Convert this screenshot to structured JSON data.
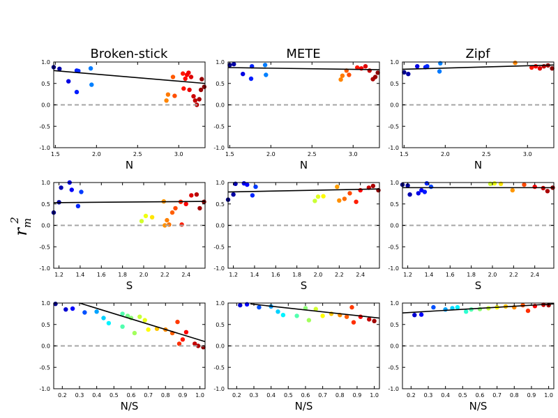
{
  "figure": {
    "ylabel": "r²m",
    "ylabel_main": "r",
    "ylabel_sup": "2",
    "ylabel_sub": "m",
    "column_titles": [
      "Broken-stick",
      "METE",
      "Zipf"
    ],
    "row_xlabels": [
      "N",
      "S",
      "N/S"
    ]
  },
  "chart_data": [
    {
      "type": "scatter",
      "panel": "broken-stick-n",
      "title": "Broken-stick",
      "xlabel": "N",
      "ylabel": "r²m",
      "xlim": [
        1.48,
        3.32
      ],
      "ylim": [
        -1.0,
        1.0
      ],
      "xticks": [
        "1.5",
        "2.0",
        "2.5",
        "3.0"
      ],
      "yticks": [
        "-1.0",
        "-0.5",
        "0.0",
        "0.5",
        "1.0"
      ],
      "fit_line": {
        "x": [
          1.48,
          3.32
        ],
        "y": [
          0.8,
          0.5
        ]
      },
      "reference_line_y": 0.0,
      "points": [
        {
          "x": 1.48,
          "y": 0.88
        },
        {
          "x": 1.55,
          "y": 0.84
        },
        {
          "x": 1.66,
          "y": 0.55
        },
        {
          "x": 1.76,
          "y": 0.3
        },
        {
          "x": 1.76,
          "y": 0.8
        },
        {
          "x": 1.78,
          "y": 0.79
        },
        {
          "x": 1.93,
          "y": 0.85
        },
        {
          "x": 1.94,
          "y": 0.47
        },
        {
          "x": 2.85,
          "y": 0.1
        },
        {
          "x": 2.87,
          "y": 0.24
        },
        {
          "x": 2.95,
          "y": 0.21
        },
        {
          "x": 2.93,
          "y": 0.65
        },
        {
          "x": 3.05,
          "y": 0.73
        },
        {
          "x": 3.1,
          "y": 0.7
        },
        {
          "x": 3.08,
          "y": 0.61
        },
        {
          "x": 3.12,
          "y": 0.75
        },
        {
          "x": 3.15,
          "y": 0.65
        },
        {
          "x": 3.06,
          "y": 0.38
        },
        {
          "x": 3.13,
          "y": 0.35
        },
        {
          "x": 3.18,
          "y": 0.2
        },
        {
          "x": 3.2,
          "y": 0.1
        },
        {
          "x": 3.22,
          "y": 0.0
        },
        {
          "x": 3.25,
          "y": 0.13
        },
        {
          "x": 3.27,
          "y": 0.35
        },
        {
          "x": 3.28,
          "y": 0.6
        },
        {
          "x": 3.31,
          "y": 0.42
        }
      ]
    },
    {
      "type": "scatter",
      "panel": "mete-n",
      "title": "METE",
      "xlabel": "N",
      "ylabel": "r²m",
      "xlim": [
        1.48,
        3.32
      ],
      "ylim": [
        -1.0,
        1.0
      ],
      "xticks": [
        "1.5",
        "2.0",
        "2.5",
        "3.0"
      ],
      "yticks": [
        "-1.0",
        "-0.5",
        "0.0",
        "0.5",
        "1.0"
      ],
      "fit_line": {
        "x": [
          1.48,
          3.32
        ],
        "y": [
          0.87,
          0.82
        ]
      },
      "reference_line_y": 0.0,
      "points": [
        {
          "x": 1.5,
          "y": 0.93
        },
        {
          "x": 1.55,
          "y": 0.95
        },
        {
          "x": 1.66,
          "y": 0.72
        },
        {
          "x": 1.76,
          "y": 0.61
        },
        {
          "x": 1.77,
          "y": 0.9
        },
        {
          "x": 1.93,
          "y": 0.93
        },
        {
          "x": 1.94,
          "y": 0.7
        },
        {
          "x": 2.85,
          "y": 0.59
        },
        {
          "x": 2.87,
          "y": 0.68
        },
        {
          "x": 2.92,
          "y": 0.8
        },
        {
          "x": 2.95,
          "y": 0.7
        },
        {
          "x": 3.05,
          "y": 0.87
        },
        {
          "x": 3.1,
          "y": 0.85
        },
        {
          "x": 3.15,
          "y": 0.9
        },
        {
          "x": 3.2,
          "y": 0.8
        },
        {
          "x": 3.24,
          "y": 0.6
        },
        {
          "x": 3.27,
          "y": 0.65
        },
        {
          "x": 3.3,
          "y": 0.75
        }
      ]
    },
    {
      "type": "scatter",
      "panel": "zipf-n",
      "title": "Zipf",
      "xlabel": "N",
      "ylabel": "r²m",
      "xlim": [
        1.48,
        3.32
      ],
      "ylim": [
        -1.0,
        1.0
      ],
      "xticks": [
        "1.5",
        "2.0",
        "2.5",
        "3.0"
      ],
      "yticks": [
        "-1.0",
        "-0.5",
        "0.0",
        "0.5",
        "1.0"
      ],
      "fit_line": {
        "x": [
          1.48,
          3.32
        ],
        "y": [
          0.83,
          0.93
        ]
      },
      "reference_line_y": 0.0,
      "points": [
        {
          "x": 1.5,
          "y": 0.76
        },
        {
          "x": 1.55,
          "y": 0.72
        },
        {
          "x": 1.66,
          "y": 0.9
        },
        {
          "x": 1.76,
          "y": 0.88
        },
        {
          "x": 1.78,
          "y": 0.9
        },
        {
          "x": 1.93,
          "y": 0.78
        },
        {
          "x": 1.94,
          "y": 0.97
        },
        {
          "x": 2.85,
          "y": 0.98
        },
        {
          "x": 3.05,
          "y": 0.87
        },
        {
          "x": 3.1,
          "y": 0.9
        },
        {
          "x": 3.15,
          "y": 0.85
        },
        {
          "x": 3.2,
          "y": 0.9
        },
        {
          "x": 3.25,
          "y": 0.92
        },
        {
          "x": 3.3,
          "y": 0.85
        }
      ]
    },
    {
      "type": "scatter",
      "panel": "broken-stick-s",
      "title": "",
      "xlabel": "S",
      "ylabel": "r²m",
      "xlim": [
        1.15,
        2.58
      ],
      "ylim": [
        -1.0,
        1.0
      ],
      "xticks": [
        "1.2",
        "1.4",
        "1.6",
        "1.8",
        "2.0",
        "2.2",
        "2.4"
      ],
      "yticks": [
        "-1.0",
        "-0.5",
        "0.0",
        "0.5",
        "1.0"
      ],
      "fit_line": {
        "x": [
          1.15,
          2.58
        ],
        "y": [
          0.53,
          0.56
        ]
      },
      "reference_line_y": 0.0,
      "points": [
        {
          "x": 1.15,
          "y": 0.3
        },
        {
          "x": 1.2,
          "y": 0.54
        },
        {
          "x": 1.22,
          "y": 0.88
        },
        {
          "x": 1.3,
          "y": 1.0
        },
        {
          "x": 1.32,
          "y": 0.83
        },
        {
          "x": 1.38,
          "y": 0.45
        },
        {
          "x": 1.41,
          "y": 0.78
        },
        {
          "x": 1.98,
          "y": 0.1
        },
        {
          "x": 2.02,
          "y": 0.22
        },
        {
          "x": 2.08,
          "y": 0.19
        },
        {
          "x": 2.19,
          "y": 0.56
        },
        {
          "x": 2.2,
          "y": 0.0
        },
        {
          "x": 2.22,
          "y": 0.12
        },
        {
          "x": 2.24,
          "y": 0.02
        },
        {
          "x": 2.27,
          "y": 0.3
        },
        {
          "x": 2.3,
          "y": 0.4
        },
        {
          "x": 2.35,
          "y": 0.55
        },
        {
          "x": 2.36,
          "y": 0.02
        },
        {
          "x": 2.4,
          "y": 0.5
        },
        {
          "x": 2.45,
          "y": 0.7
        },
        {
          "x": 2.5,
          "y": 0.72
        },
        {
          "x": 2.53,
          "y": 0.4
        },
        {
          "x": 2.57,
          "y": 0.55
        }
      ]
    },
    {
      "type": "scatter",
      "panel": "mete-s",
      "title": "",
      "xlabel": "S",
      "ylabel": "r²m",
      "xlim": [
        1.15,
        2.58
      ],
      "ylim": [
        -1.0,
        1.0
      ],
      "xticks": [
        "1.2",
        "1.4",
        "1.6",
        "1.8",
        "2.0",
        "2.2",
        "2.4"
      ],
      "yticks": [
        "-1.0",
        "-0.5",
        "0.0",
        "0.5",
        "1.0"
      ],
      "fit_line": {
        "x": [
          1.15,
          2.58
        ],
        "y": [
          0.78,
          0.85
        ]
      },
      "reference_line_y": 0.0,
      "points": [
        {
          "x": 1.15,
          "y": 0.6
        },
        {
          "x": 1.2,
          "y": 0.72
        },
        {
          "x": 1.22,
          "y": 0.97
        },
        {
          "x": 1.3,
          "y": 0.98
        },
        {
          "x": 1.33,
          "y": 0.95
        },
        {
          "x": 1.38,
          "y": 0.7
        },
        {
          "x": 1.41,
          "y": 0.9
        },
        {
          "x": 1.97,
          "y": 0.57
        },
        {
          "x": 2.0,
          "y": 0.67
        },
        {
          "x": 2.05,
          "y": 0.68
        },
        {
          "x": 2.18,
          "y": 0.9
        },
        {
          "x": 2.2,
          "y": 0.58
        },
        {
          "x": 2.25,
          "y": 0.62
        },
        {
          "x": 2.3,
          "y": 0.75
        },
        {
          "x": 2.36,
          "y": 0.55
        },
        {
          "x": 2.4,
          "y": 0.82
        },
        {
          "x": 2.48,
          "y": 0.88
        },
        {
          "x": 2.52,
          "y": 0.92
        },
        {
          "x": 2.57,
          "y": 0.82
        }
      ]
    },
    {
      "type": "scatter",
      "panel": "zipf-s",
      "title": "",
      "xlabel": "S",
      "ylabel": "r²m",
      "xlim": [
        1.15,
        2.58
      ],
      "ylim": [
        -1.0,
        1.0
      ],
      "xticks": [
        "1.2",
        "1.4",
        "1.6",
        "1.8",
        "2.0",
        "2.2",
        "2.4"
      ],
      "yticks": [
        "-1.0",
        "-0.5",
        "0.0",
        "0.5",
        "1.0"
      ],
      "fit_line": {
        "x": [
          1.15,
          2.58
        ],
        "y": [
          0.88,
          0.88
        ]
      },
      "reference_line_y": 0.0,
      "points": [
        {
          "x": 1.15,
          "y": 0.95
        },
        {
          "x": 1.2,
          "y": 0.93
        },
        {
          "x": 1.22,
          "y": 0.72
        },
        {
          "x": 1.3,
          "y": 0.75
        },
        {
          "x": 1.33,
          "y": 0.82
        },
        {
          "x": 1.36,
          "y": 0.78
        },
        {
          "x": 1.38,
          "y": 0.98
        },
        {
          "x": 1.42,
          "y": 0.9
        },
        {
          "x": 1.98,
          "y": 0.97
        },
        {
          "x": 2.02,
          "y": 0.98
        },
        {
          "x": 2.08,
          "y": 0.97
        },
        {
          "x": 2.19,
          "y": 0.82
        },
        {
          "x": 2.3,
          "y": 0.95
        },
        {
          "x": 2.4,
          "y": 0.9
        },
        {
          "x": 2.48,
          "y": 0.87
        },
        {
          "x": 2.52,
          "y": 0.8
        },
        {
          "x": 2.57,
          "y": 0.88
        }
      ]
    },
    {
      "type": "scatter",
      "panel": "broken-stick-ns",
      "title": "",
      "xlabel": "N/S",
      "ylabel": "r²m",
      "xlim": [
        0.15,
        1.03
      ],
      "ylim": [
        -1.0,
        1.0
      ],
      "xticks": [
        "0.2",
        "0.3",
        "0.4",
        "0.5",
        "0.6",
        "0.7",
        "0.8",
        "0.9",
        "1.0"
      ],
      "yticks": [
        "-1.0",
        "-0.5",
        "0.0",
        "0.5",
        "1.0"
      ],
      "fit_line": {
        "x": [
          0.3,
          1.03
        ],
        "y": [
          1.0,
          0.1
        ]
      },
      "reference_line_y": 0.0,
      "points": [
        {
          "x": 0.16,
          "y": 0.98
        },
        {
          "x": 0.22,
          "y": 0.85
        },
        {
          "x": 0.26,
          "y": 0.87
        },
        {
          "x": 0.33,
          "y": 0.78
        },
        {
          "x": 0.4,
          "y": 0.8
        },
        {
          "x": 0.44,
          "y": 0.65
        },
        {
          "x": 0.47,
          "y": 0.53
        },
        {
          "x": 0.55,
          "y": 0.45
        },
        {
          "x": 0.55,
          "y": 0.75
        },
        {
          "x": 0.58,
          "y": 0.7
        },
        {
          "x": 0.6,
          "y": 0.65
        },
        {
          "x": 0.62,
          "y": 0.3
        },
        {
          "x": 0.65,
          "y": 0.68
        },
        {
          "x": 0.68,
          "y": 0.6
        },
        {
          "x": 0.7,
          "y": 0.38
        },
        {
          "x": 0.75,
          "y": 0.4
        },
        {
          "x": 0.8,
          "y": 0.38
        },
        {
          "x": 0.84,
          "y": 0.3
        },
        {
          "x": 0.87,
          "y": 0.56
        },
        {
          "x": 0.88,
          "y": 0.05
        },
        {
          "x": 0.9,
          "y": 0.15
        },
        {
          "x": 0.92,
          "y": 0.32
        },
        {
          "x": 0.97,
          "y": 0.05
        },
        {
          "x": 0.99,
          "y": 0.0
        },
        {
          "x": 1.02,
          "y": -0.03
        }
      ]
    },
    {
      "type": "scatter",
      "panel": "mete-ns",
      "title": "",
      "xlabel": "N/S",
      "ylabel": "r²m",
      "xlim": [
        0.15,
        1.03
      ],
      "ylim": [
        -1.0,
        1.0
      ],
      "xticks": [
        "0.2",
        "0.3",
        "0.4",
        "0.5",
        "0.6",
        "0.7",
        "0.8",
        "0.9",
        "1.0"
      ],
      "yticks": [
        "-1.0",
        "-0.5",
        "0.0",
        "0.5",
        "1.0"
      ],
      "fit_line": {
        "x": [
          0.28,
          1.03
        ],
        "y": [
          0.98,
          0.65
        ]
      },
      "reference_line_y": 0.0,
      "points": [
        {
          "x": 0.22,
          "y": 0.95
        },
        {
          "x": 0.26,
          "y": 0.97
        },
        {
          "x": 0.33,
          "y": 0.9
        },
        {
          "x": 0.4,
          "y": 0.92
        },
        {
          "x": 0.44,
          "y": 0.8
        },
        {
          "x": 0.47,
          "y": 0.72
        },
        {
          "x": 0.55,
          "y": 0.7
        },
        {
          "x": 0.6,
          "y": 0.88
        },
        {
          "x": 0.62,
          "y": 0.6
        },
        {
          "x": 0.66,
          "y": 0.86
        },
        {
          "x": 0.7,
          "y": 0.7
        },
        {
          "x": 0.75,
          "y": 0.75
        },
        {
          "x": 0.8,
          "y": 0.72
        },
        {
          "x": 0.84,
          "y": 0.68
        },
        {
          "x": 0.87,
          "y": 0.9
        },
        {
          "x": 0.88,
          "y": 0.55
        },
        {
          "x": 0.92,
          "y": 0.68
        },
        {
          "x": 0.97,
          "y": 0.62
        },
        {
          "x": 1.0,
          "y": 0.58
        }
      ]
    },
    {
      "type": "scatter",
      "panel": "zipf-ns",
      "title": "",
      "xlabel": "N/S",
      "ylabel": "r²m",
      "xlim": [
        0.15,
        1.03
      ],
      "ylim": [
        -1.0,
        1.0
      ],
      "xticks": [
        "0.2",
        "0.3",
        "0.4",
        "0.5",
        "0.6",
        "0.7",
        "0.8",
        "0.9",
        "1.0"
      ],
      "yticks": [
        "-1.0",
        "-0.5",
        "0.0",
        "0.5",
        "1.0"
      ],
      "fit_line": {
        "x": [
          0.15,
          1.03
        ],
        "y": [
          0.77,
          0.98
        ]
      },
      "reference_line_y": 0.0,
      "points": [
        {
          "x": 0.22,
          "y": 0.72
        },
        {
          "x": 0.26,
          "y": 0.73
        },
        {
          "x": 0.33,
          "y": 0.9
        },
        {
          "x": 0.4,
          "y": 0.85
        },
        {
          "x": 0.44,
          "y": 0.88
        },
        {
          "x": 0.47,
          "y": 0.9
        },
        {
          "x": 0.52,
          "y": 0.8
        },
        {
          "x": 0.55,
          "y": 0.85
        },
        {
          "x": 0.6,
          "y": 0.86
        },
        {
          "x": 0.65,
          "y": 0.88
        },
        {
          "x": 0.7,
          "y": 0.9
        },
        {
          "x": 0.75,
          "y": 0.92
        },
        {
          "x": 0.8,
          "y": 0.9
        },
        {
          "x": 0.85,
          "y": 0.95
        },
        {
          "x": 0.88,
          "y": 0.82
        },
        {
          "x": 0.92,
          "y": 0.93
        },
        {
          "x": 0.97,
          "y": 0.96
        },
        {
          "x": 1.0,
          "y": 0.95
        }
      ]
    }
  ]
}
